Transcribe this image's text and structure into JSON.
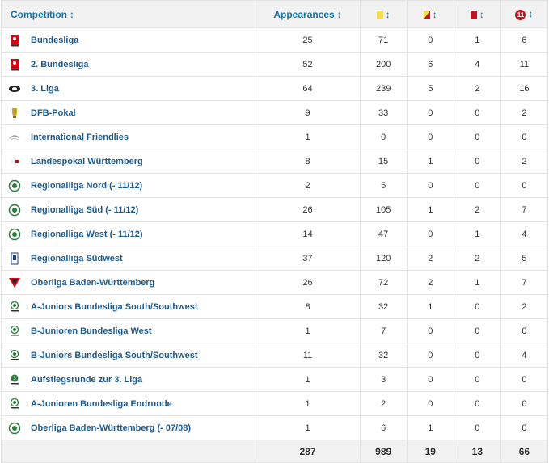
{
  "header": {
    "competition": "Competition",
    "appearances": "Appearances",
    "sort_arrow": "↕",
    "penalty_icon_text": "11"
  },
  "rows": [
    {
      "name": "Bundesliga",
      "logo": "bundesliga-logo",
      "apps": "25",
      "yellow": "71",
      "yellow_red": "0",
      "red": "1",
      "penalty": "6"
    },
    {
      "name": "2. Bundesliga",
      "logo": "2-bundesliga-logo",
      "apps": "52",
      "yellow": "200",
      "yellow_red": "6",
      "red": "4",
      "penalty": "11"
    },
    {
      "name": "3. Liga",
      "logo": "3-liga-logo",
      "apps": "64",
      "yellow": "239",
      "yellow_red": "5",
      "red": "2",
      "penalty": "16"
    },
    {
      "name": "DFB-Pokal",
      "logo": "dfb-pokal-logo",
      "apps": "9",
      "yellow": "33",
      "yellow_red": "0",
      "red": "0",
      "penalty": "2"
    },
    {
      "name": "International Friendlies",
      "logo": "friendlies-logo",
      "apps": "1",
      "yellow": "0",
      "yellow_red": "0",
      "red": "0",
      "penalty": "0"
    },
    {
      "name": "Landespokal Württemberg",
      "logo": "landespokal-logo",
      "apps": "8",
      "yellow": "15",
      "yellow_red": "1",
      "red": "0",
      "penalty": "2"
    },
    {
      "name": "Regionalliga Nord (- 11/12)",
      "logo": "dfb-logo",
      "apps": "2",
      "yellow": "5",
      "yellow_red": "0",
      "red": "0",
      "penalty": "0"
    },
    {
      "name": "Regionalliga Süd (- 11/12)",
      "logo": "dfb-logo",
      "apps": "26",
      "yellow": "105",
      "yellow_red": "1",
      "red": "2",
      "penalty": "7"
    },
    {
      "name": "Regionalliga West (- 11/12)",
      "logo": "dfb-logo",
      "apps": "14",
      "yellow": "47",
      "yellow_red": "0",
      "red": "1",
      "penalty": "4"
    },
    {
      "name": "Regionalliga Südwest",
      "logo": "regionalliga-suedwest-logo",
      "apps": "37",
      "yellow": "120",
      "yellow_red": "2",
      "red": "2",
      "penalty": "5"
    },
    {
      "name": "Oberliga Baden-Württemberg",
      "logo": "oberliga-bw-logo",
      "apps": "26",
      "yellow": "72",
      "yellow_red": "2",
      "red": "1",
      "penalty": "7"
    },
    {
      "name": "A-Juniors Bundesliga South/Southwest",
      "logo": "junioren-logo",
      "apps": "8",
      "yellow": "32",
      "yellow_red": "1",
      "red": "0",
      "penalty": "2"
    },
    {
      "name": "B-Junioren Bundesliga West",
      "logo": "junioren-logo",
      "apps": "1",
      "yellow": "7",
      "yellow_red": "0",
      "red": "0",
      "penalty": "0"
    },
    {
      "name": "B-Juniors Bundesliga South/Southwest",
      "logo": "junioren-logo",
      "apps": "11",
      "yellow": "32",
      "yellow_red": "0",
      "red": "0",
      "penalty": "4"
    },
    {
      "name": "Aufstiegsrunde zur 3. Liga",
      "logo": "aufstiegsrunde-logo",
      "apps": "1",
      "yellow": "3",
      "yellow_red": "0",
      "red": "0",
      "penalty": "0"
    },
    {
      "name": "A-Junioren Bundesliga Endrunde",
      "logo": "junioren-logo",
      "apps": "1",
      "yellow": "2",
      "yellow_red": "0",
      "red": "0",
      "penalty": "0"
    },
    {
      "name": "Oberliga Baden-Württemberg (- 07/08)",
      "logo": "dfb-logo",
      "apps": "1",
      "yellow": "6",
      "yellow_red": "1",
      "red": "0",
      "penalty": "0"
    }
  ],
  "totals": {
    "apps": "287",
    "yellow": "989",
    "yellow_red": "19",
    "red": "13",
    "penalty": "66"
  },
  "colors": {
    "link": "#1d5a8c",
    "yellow_card": "#f6e04a",
    "red_card": "#c1121f",
    "header_bg": "#f2f2f2"
  }
}
